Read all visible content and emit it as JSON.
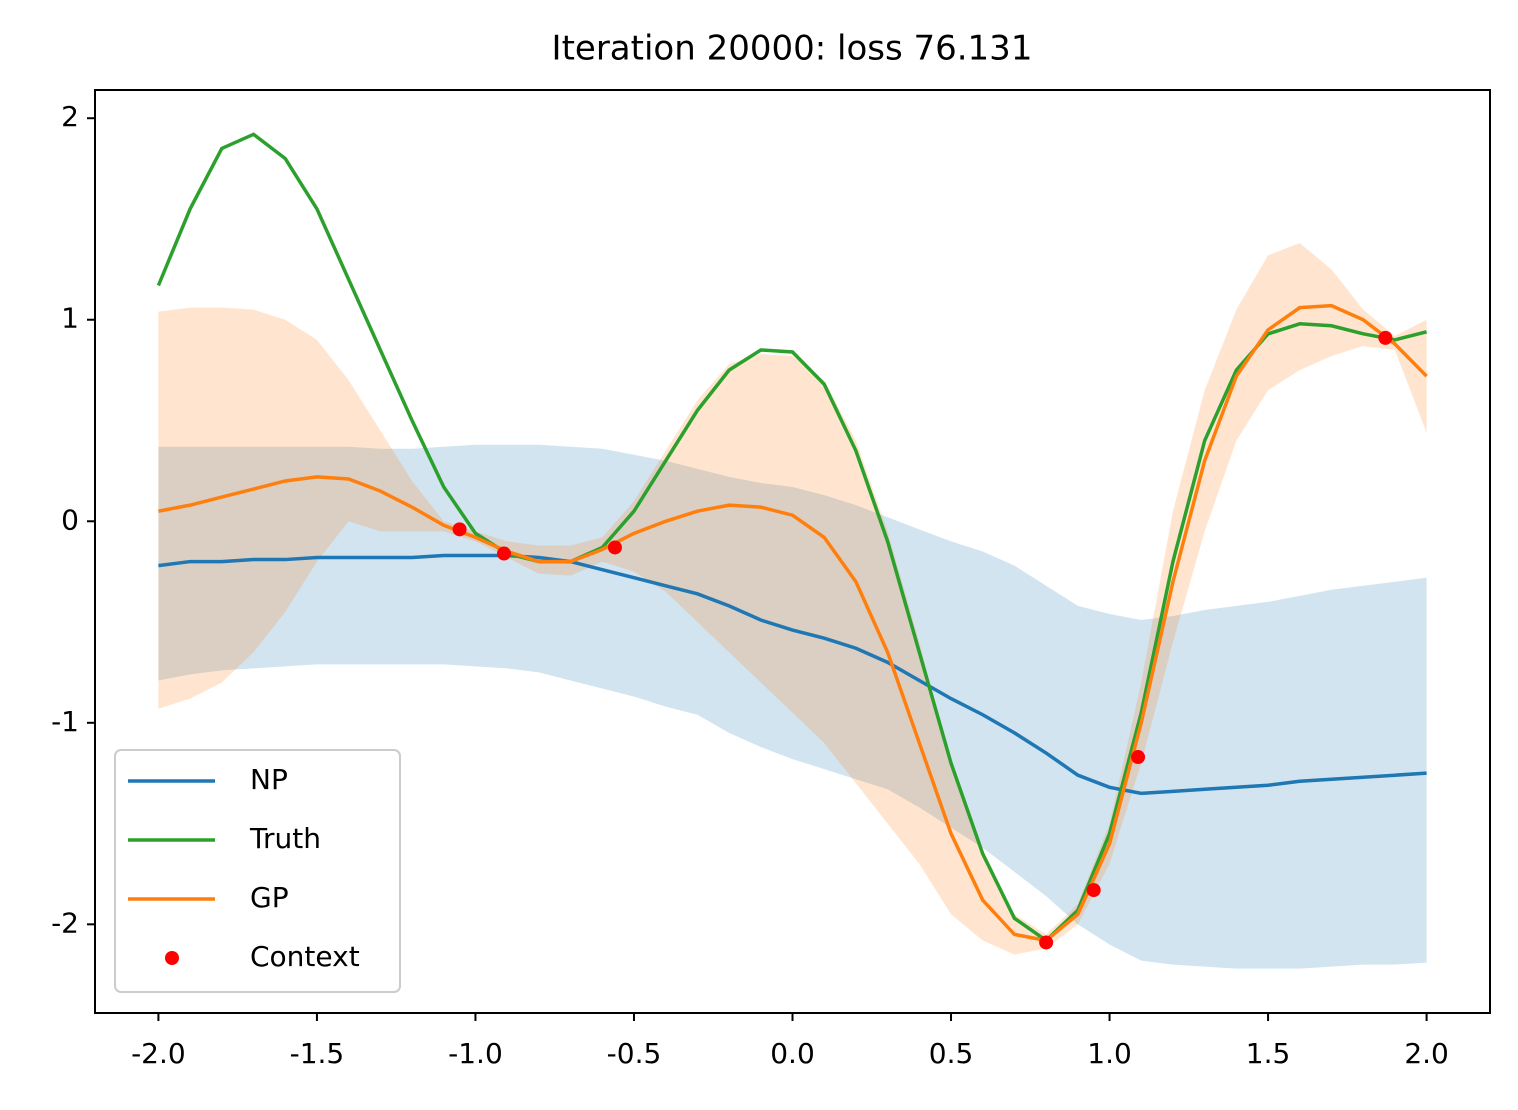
{
  "chart_data": {
    "type": "line",
    "title": "Iteration 20000: loss 76.131",
    "xlim": [
      -2.2,
      2.2
    ],
    "ylim": [
      -2.44,
      2.14
    ],
    "xticks": [
      {
        "value": -2,
        "label": "-2.0"
      },
      -1.5,
      {
        "value": -1,
        "label": "-1.0"
      },
      -0.5,
      {
        "value": 0,
        "label": "0.0"
      },
      0.5,
      {
        "value": 1,
        "label": "1.0"
      },
      1.5,
      {
        "value": 2,
        "label": "2.0"
      }
    ],
    "yticks": [
      -2,
      -1,
      0,
      1,
      2
    ],
    "grid": false,
    "legend": "lower left",
    "x": [
      -2.0,
      -1.9,
      -1.8,
      -1.7,
      -1.6,
      -1.5,
      -1.4,
      -1.3,
      -1.2,
      -1.1,
      -1.0,
      -0.9,
      -0.8,
      -0.7,
      -0.6,
      -0.5,
      -0.4,
      -0.3,
      -0.2,
      -0.1,
      0.0,
      0.1,
      0.2,
      0.3,
      0.4,
      0.5,
      0.6,
      0.7,
      0.8,
      0.9,
      1.0,
      1.1,
      1.2,
      1.3,
      1.4,
      1.5,
      1.6,
      1.7,
      1.8,
      1.9,
      2.0
    ],
    "bands": [
      {
        "color": "#1f77b4",
        "alpha": 0.2,
        "upper": [
          0.37,
          0.37,
          0.37,
          0.37,
          0.37,
          0.37,
          0.37,
          0.36,
          0.36,
          0.37,
          0.38,
          0.38,
          0.38,
          0.37,
          0.36,
          0.33,
          0.3,
          0.26,
          0.22,
          0.19,
          0.17,
          0.13,
          0.08,
          0.02,
          -0.04,
          -0.1,
          -0.15,
          -0.22,
          -0.32,
          -0.42,
          -0.46,
          -0.49,
          -0.47,
          -0.44,
          -0.42,
          -0.4,
          -0.37,
          -0.34,
          -0.32,
          -0.3,
          -0.28
        ],
        "lower": [
          -0.79,
          -0.76,
          -0.74,
          -0.73,
          -0.72,
          -0.71,
          -0.71,
          -0.71,
          -0.71,
          -0.71,
          -0.72,
          -0.73,
          -0.75,
          -0.79,
          -0.83,
          -0.87,
          -0.92,
          -0.96,
          -1.05,
          -1.12,
          -1.18,
          -1.23,
          -1.28,
          -1.33,
          -1.42,
          -1.52,
          -1.62,
          -1.74,
          -1.86,
          -2.0,
          -2.1,
          -2.18,
          -2.2,
          -2.21,
          -2.22,
          -2.22,
          -2.22,
          -2.21,
          -2.2,
          -2.2,
          -2.19
        ]
      },
      {
        "color": "#ff7f0e",
        "alpha": 0.2,
        "upper": [
          1.04,
          1.06,
          1.06,
          1.05,
          1.0,
          0.9,
          0.7,
          0.45,
          0.2,
          0.0,
          -0.05,
          -0.1,
          -0.12,
          -0.12,
          -0.08,
          0.1,
          0.35,
          0.6,
          0.78,
          0.83,
          0.82,
          0.7,
          0.4,
          -0.05,
          -0.6,
          -1.2,
          -1.65,
          -1.95,
          -2.05,
          -1.9,
          -1.5,
          -0.8,
          0.05,
          0.65,
          1.05,
          1.32,
          1.38,
          1.25,
          1.05,
          0.92,
          1.0
        ],
        "lower": [
          -0.93,
          -0.88,
          -0.8,
          -0.65,
          -0.45,
          -0.2,
          0.0,
          -0.05,
          -0.05,
          -0.05,
          -0.1,
          -0.18,
          -0.26,
          -0.27,
          -0.2,
          -0.25,
          -0.35,
          -0.5,
          -0.65,
          -0.8,
          -0.95,
          -1.1,
          -1.3,
          -1.5,
          -1.7,
          -1.95,
          -2.08,
          -2.15,
          -2.12,
          -2.0,
          -1.7,
          -1.2,
          -0.6,
          -0.05,
          0.4,
          0.65,
          0.75,
          0.82,
          0.87,
          0.85,
          0.44
        ]
      }
    ],
    "series": [
      {
        "name": "NP",
        "type": "line",
        "color": "#1f77b4",
        "values": [
          -0.22,
          -0.2,
          -0.2,
          -0.19,
          -0.19,
          -0.18,
          -0.18,
          -0.18,
          -0.18,
          -0.17,
          -0.17,
          -0.17,
          -0.18,
          -0.2,
          -0.24,
          -0.28,
          -0.32,
          -0.36,
          -0.42,
          -0.49,
          -0.54,
          -0.58,
          -0.63,
          -0.7,
          -0.79,
          -0.88,
          -0.96,
          -1.05,
          -1.15,
          -1.26,
          -1.32,
          -1.35,
          -1.34,
          -1.33,
          -1.32,
          -1.31,
          -1.29,
          -1.28,
          -1.27,
          -1.26,
          -1.25
        ]
      },
      {
        "name": "Truth",
        "type": "line",
        "color": "#2ca02c",
        "values": [
          1.17,
          1.55,
          1.85,
          1.92,
          1.8,
          1.55,
          1.2,
          0.85,
          0.5,
          0.17,
          -0.06,
          -0.16,
          -0.2,
          -0.2,
          -0.13,
          0.05,
          0.3,
          0.55,
          0.75,
          0.85,
          0.84,
          0.68,
          0.35,
          -0.1,
          -0.65,
          -1.2,
          -1.65,
          -1.97,
          -2.08,
          -1.93,
          -1.55,
          -0.95,
          -0.2,
          0.4,
          0.75,
          0.93,
          0.98,
          0.97,
          0.93,
          0.9,
          0.94
        ]
      },
      {
        "name": "GP",
        "type": "line",
        "color": "#ff7f0e",
        "values": [
          0.05,
          0.08,
          0.12,
          0.16,
          0.2,
          0.22,
          0.21,
          0.15,
          0.07,
          -0.02,
          -0.08,
          -0.15,
          -0.2,
          -0.2,
          -0.14,
          -0.06,
          0.0,
          0.05,
          0.08,
          0.07,
          0.03,
          -0.08,
          -0.3,
          -0.65,
          -1.1,
          -1.55,
          -1.88,
          -2.05,
          -2.08,
          -1.95,
          -1.6,
          -1.0,
          -0.3,
          0.3,
          0.72,
          0.95,
          1.06,
          1.07,
          1.0,
          0.88,
          0.72
        ]
      },
      {
        "name": "Context",
        "type": "scatter",
        "color": "#ff0000",
        "x": [
          -1.05,
          -0.91,
          -0.56,
          0.8,
          0.95,
          1.09,
          1.87
        ],
        "values": [
          -0.04,
          -0.16,
          -0.13,
          -2.09,
          -1.83,
          -1.17,
          0.91
        ]
      }
    ]
  }
}
